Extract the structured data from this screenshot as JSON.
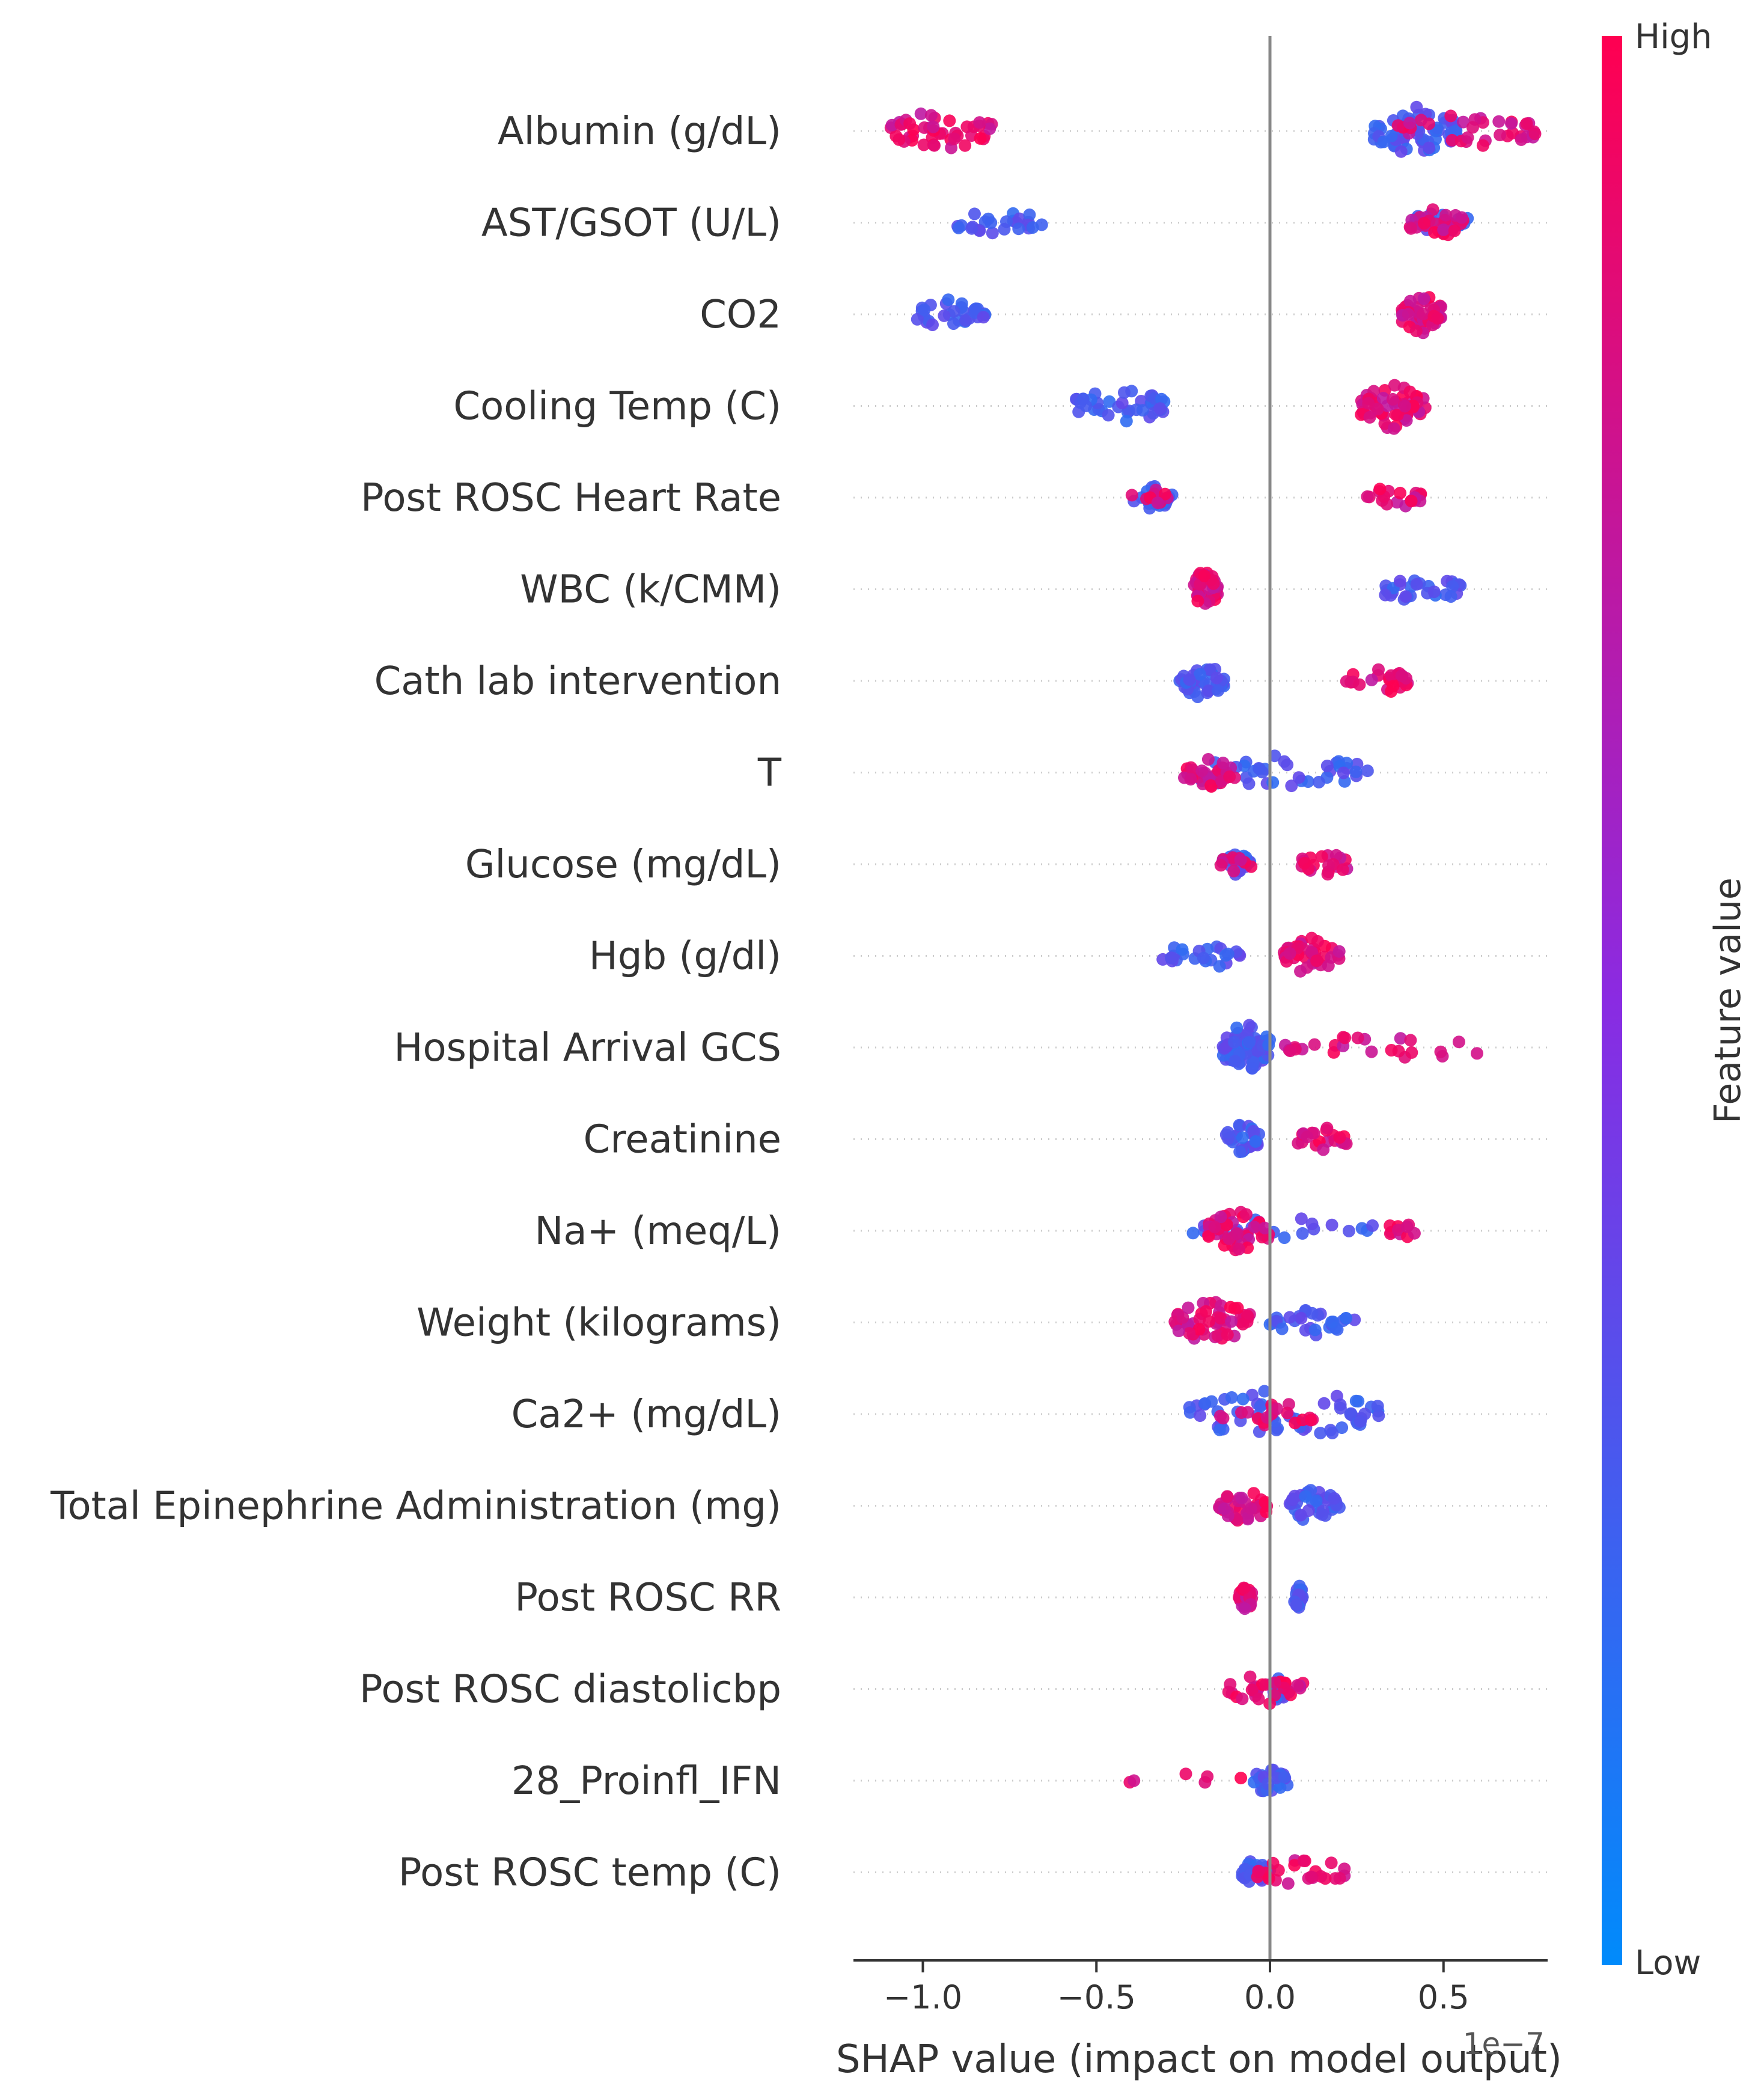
{
  "chart_data": {
    "type": "scatter",
    "subtype": "shap-beeswarm",
    "xlabel": "SHAP value (impact on model output)",
    "x_offset_label": "1e−7",
    "xlim": [
      -1.2,
      0.8
    ],
    "xticks": [
      -1.0,
      -0.5,
      0.0,
      0.5
    ],
    "xtick_labels": [
      "−1.0",
      "−0.5",
      "0.0",
      "0.5"
    ],
    "colorbar": {
      "title": "Feature value",
      "high_label": "High",
      "low_label": "Low",
      "high_color": "#ff0051",
      "low_color": "#008bfb"
    },
    "features": [
      {
        "name": "Albumin (g/dL)",
        "low": [
          [
            0.3,
            0.55,
            60
          ]
        ],
        "high": [
          [
            -1.1,
            -0.8,
            45
          ],
          [
            0.35,
            0.78,
            35
          ]
        ]
      },
      {
        "name": "AST/GSOT (U/L)",
        "low": [
          [
            -0.9,
            -0.65,
            25
          ],
          [
            0.4,
            0.57,
            20
          ]
        ],
        "high": [
          [
            0.4,
            0.56,
            30
          ]
        ]
      },
      {
        "name": "CO2",
        "low": [
          [
            -1.02,
            -0.82,
            30
          ]
        ],
        "high": [
          [
            0.38,
            0.5,
            45
          ]
        ]
      },
      {
        "name": "Cooling Temp (C)",
        "low": [
          [
            -0.56,
            -0.3,
            40
          ]
        ],
        "high": [
          [
            0.26,
            0.45,
            55
          ]
        ]
      },
      {
        "name": "Post ROSC Heart Rate",
        "low": [
          [
            -0.4,
            -0.28,
            20
          ]
        ],
        "high": [
          [
            -0.4,
            -0.28,
            10
          ],
          [
            0.28,
            0.44,
            20
          ]
        ]
      },
      {
        "name": "WBC (k/CMM)",
        "low": [
          [
            0.33,
            0.55,
            30
          ]
        ],
        "high": [
          [
            -0.22,
            -0.15,
            45
          ]
        ]
      },
      {
        "name": "Cath lab intervention",
        "low": [
          [
            -0.26,
            -0.13,
            40
          ]
        ],
        "high": [
          [
            0.22,
            0.4,
            25
          ]
        ]
      },
      {
        "name": "T",
        "low": [
          [
            -0.25,
            0.3,
            40
          ]
        ],
        "high": [
          [
            -0.25,
            -0.1,
            30
          ]
        ]
      },
      {
        "name": "Glucose (mg/dL)",
        "low": [
          [
            -0.15,
            -0.05,
            20
          ]
        ],
        "high": [
          [
            -0.15,
            -0.05,
            10
          ],
          [
            0.08,
            0.23,
            20
          ]
        ]
      },
      {
        "name": "Hgb (g/dl)",
        "low": [
          [
            -0.32,
            -0.08,
            25
          ]
        ],
        "high": [
          [
            0.04,
            0.2,
            40
          ]
        ]
      },
      {
        "name": "Hospital Arrival GCS",
        "low": [
          [
            -0.14,
            0.0,
            80
          ]
        ],
        "high": [
          [
            0.02,
            0.64,
            25
          ]
        ]
      },
      {
        "name": "Creatinine",
        "low": [
          [
            -0.13,
            -0.03,
            30
          ]
        ],
        "high": [
          [
            0.08,
            0.23,
            20
          ]
        ]
      },
      {
        "name": "Na+ (meq/L)",
        "low": [
          [
            -0.25,
            0.3,
            25
          ]
        ],
        "high": [
          [
            -0.18,
            0.0,
            45
          ],
          [
            0.33,
            0.43,
            10
          ]
        ]
      },
      {
        "name": "Weight (kilograms)",
        "low": [
          [
            0.0,
            0.25,
            30
          ]
        ],
        "high": [
          [
            -0.28,
            -0.05,
            50
          ]
        ]
      },
      {
        "name": "Ca2+ (mg/dL)",
        "low": [
          [
            -0.25,
            0.32,
            60
          ]
        ],
        "high": [
          [
            -0.15,
            0.15,
            20
          ]
        ]
      },
      {
        "name": "Total Epinephrine Administration (mg)",
        "low": [
          [
            0.05,
            0.2,
            35
          ]
        ],
        "high": [
          [
            -0.15,
            0.0,
            35
          ]
        ]
      },
      {
        "name": "Post ROSC RR",
        "low": [
          [
            0.07,
            0.1,
            20
          ]
        ],
        "high": [
          [
            -0.09,
            -0.05,
            25
          ]
        ]
      },
      {
        "name": "Post ROSC diastolicbp",
        "low": [
          [
            0.0,
            0.06,
            20
          ]
        ],
        "high": [
          [
            -0.12,
            0.1,
            30
          ]
        ]
      },
      {
        "name": "28_Proinfl_IFN",
        "low": [
          [
            -0.05,
            0.05,
            25
          ]
        ],
        "high": [
          [
            -0.42,
            -0.07,
            6
          ]
        ]
      },
      {
        "name": "Post ROSC temp (C)",
        "low": [
          [
            -0.08,
            0.0,
            25
          ]
        ],
        "high": [
          [
            -0.05,
            0.24,
            25
          ]
        ]
      }
    ]
  }
}
